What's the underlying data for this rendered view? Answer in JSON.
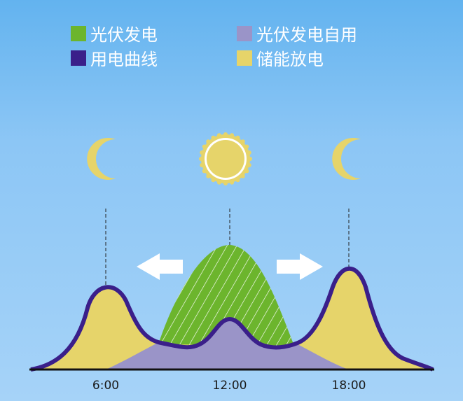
{
  "legend": [
    {
      "label": "光伏发电",
      "color": "#6cb52d"
    },
    {
      "label": "光伏发电自用",
      "color": "#9a94c8"
    },
    {
      "label": "用电曲线",
      "color": "#3a1f8a"
    },
    {
      "label": "储能放电",
      "color": "#e6d46a"
    }
  ],
  "icons": [
    "moon-icon",
    "sun-icon",
    "moon-icon",
    "arrow-left-icon",
    "arrow-right-icon"
  ],
  "x_ticks": [
    "6:00",
    "12:00",
    "18:00"
  ]
}
